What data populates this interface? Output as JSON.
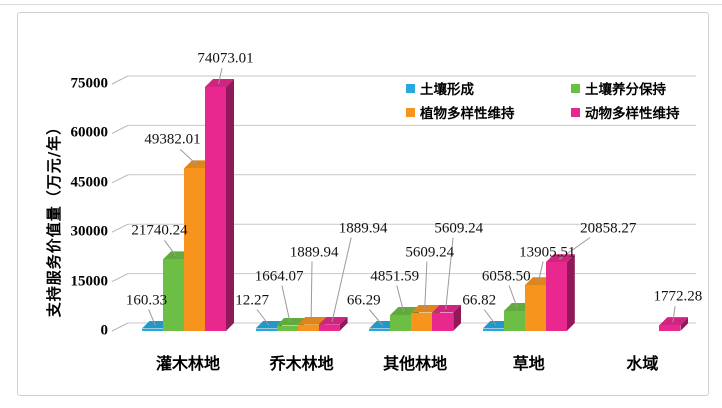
{
  "chart_data": {
    "type": "bar",
    "style": "3d-clustered-column",
    "categories": [
      "灌木林地",
      "乔木林地",
      "其他林地",
      "草地",
      "水域"
    ],
    "series": [
      {
        "name": "土壤形成",
        "color": "#29a8dc",
        "values": [
          160.33,
          12.27,
          66.29,
          66.82,
          null
        ]
      },
      {
        "name": "土壤养分保持",
        "color": "#6cbe45",
        "values": [
          21740.24,
          1664.07,
          4851.59,
          6058.5,
          null
        ]
      },
      {
        "name": "植物多样性维持",
        "color": "#f7941e",
        "values": [
          49382.01,
          1889.94,
          5609.24,
          13905.51,
          null
        ]
      },
      {
        "name": "动物多样性维持",
        "color": "#e8288f",
        "values": [
          74073.01,
          1889.94,
          5609.24,
          20858.27,
          1772.28
        ]
      }
    ],
    "title": "",
    "xlabel": "",
    "ylabel": "支持服务价值量（万元/年）",
    "yticks": [
      0,
      15000,
      30000,
      45000,
      60000,
      75000
    ],
    "ylim": [
      0,
      75000
    ],
    "grid": true,
    "legend_position": "top-right",
    "data_label_decimals": 2,
    "gridline_color": "#c9c9c9",
    "leader_line_color": "#9a9a9a"
  }
}
